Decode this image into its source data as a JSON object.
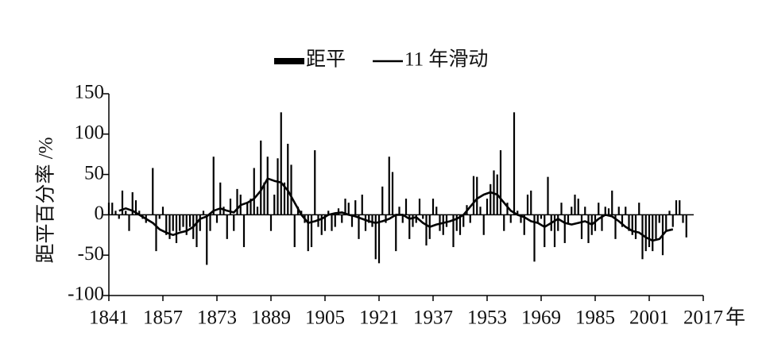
{
  "chart_data": {
    "type": "bar-line",
    "legend_position": "top",
    "ylabel": "距平百分率 /%",
    "x_unit": "年",
    "xlim": [
      1841,
      2017
    ],
    "xticks": [
      1841,
      1857,
      1873,
      1889,
      1905,
      1921,
      1937,
      1953,
      1969,
      1985,
      2001,
      2017
    ],
    "ylim": [
      -100,
      150
    ],
    "yticks": [
      -100,
      -50,
      0,
      50,
      100,
      150
    ],
    "series": [
      {
        "name": "距平",
        "type": "bar",
        "color": "#000000",
        "x": [
          1841,
          1842,
          1843,
          1844,
          1845,
          1846,
          1847,
          1848,
          1849,
          1850,
          1851,
          1852,
          1853,
          1854,
          1855,
          1856,
          1857,
          1858,
          1859,
          1860,
          1861,
          1862,
          1863,
          1864,
          1865,
          1866,
          1867,
          1868,
          1869,
          1870,
          1871,
          1872,
          1873,
          1874,
          1875,
          1876,
          1877,
          1878,
          1879,
          1880,
          1881,
          1882,
          1883,
          1884,
          1885,
          1886,
          1887,
          1888,
          1889,
          1890,
          1891,
          1892,
          1893,
          1894,
          1895,
          1896,
          1897,
          1898,
          1899,
          1900,
          1901,
          1902,
          1903,
          1904,
          1905,
          1906,
          1907,
          1908,
          1909,
          1910,
          1911,
          1912,
          1913,
          1914,
          1915,
          1916,
          1917,
          1918,
          1919,
          1920,
          1921,
          1922,
          1923,
          1924,
          1925,
          1926,
          1927,
          1928,
          1929,
          1930,
          1931,
          1932,
          1933,
          1934,
          1935,
          1936,
          1937,
          1938,
          1939,
          1940,
          1941,
          1942,
          1943,
          1944,
          1945,
          1946,
          1947,
          1948,
          1949,
          1950,
          1951,
          1952,
          1953,
          1954,
          1955,
          1956,
          1957,
          1958,
          1959,
          1960,
          1961,
          1962,
          1963,
          1964,
          1965,
          1966,
          1967,
          1968,
          1969,
          1970,
          1971,
          1972,
          1973,
          1974,
          1975,
          1976,
          1977,
          1978,
          1979,
          1980,
          1981,
          1982,
          1983,
          1984,
          1985,
          1986,
          1987,
          1988,
          1989,
          1990,
          1991,
          1992,
          1993,
          1994,
          1995,
          1996,
          1997,
          1998,
          1999,
          2000,
          2001,
          2002,
          2003,
          2004,
          2005,
          2006,
          2007,
          2008,
          2009,
          2010,
          2011,
          2012
        ],
        "values": [
          15,
          15,
          5,
          -5,
          30,
          5,
          -20,
          28,
          18,
          5,
          -5,
          -10,
          0,
          58,
          -45,
          -5,
          10,
          -25,
          -30,
          -20,
          -35,
          -20,
          -15,
          -25,
          -15,
          -30,
          -40,
          -20,
          5,
          -62,
          -20,
          72,
          -10,
          40,
          10,
          -30,
          20,
          -20,
          32,
          25,
          -40,
          15,
          20,
          58,
          10,
          92,
          40,
          72,
          -20,
          25,
          70,
          127,
          40,
          88,
          62,
          -40,
          10,
          5,
          -10,
          -45,
          -40,
          80,
          -15,
          -25,
          -20,
          5,
          -20,
          -15,
          8,
          -10,
          20,
          15,
          -15,
          18,
          -30,
          25,
          -20,
          -10,
          -15,
          -55,
          -60,
          35,
          -10,
          72,
          53,
          -45,
          10,
          -10,
          20,
          -30,
          -15,
          -10,
          20,
          -5,
          -38,
          -30,
          20,
          10,
          -20,
          -25,
          -15,
          0,
          -40,
          -20,
          -25,
          -15,
          12,
          -10,
          48,
          47,
          10,
          -25,
          20,
          38,
          55,
          50,
          80,
          -20,
          15,
          -10,
          127,
          5,
          -10,
          -25,
          25,
          30,
          -58,
          -10,
          -5,
          -40,
          47,
          -20,
          -40,
          -20,
          15,
          -35,
          -10,
          10,
          25,
          20,
          -30,
          10,
          -35,
          -25,
          -20,
          15,
          -20,
          10,
          8,
          30,
          -30,
          10,
          -15,
          10,
          -20,
          -25,
          -30,
          15,
          -55,
          -45,
          -40,
          -45,
          -30,
          -10,
          -50,
          -20,
          5,
          -15,
          18,
          18,
          -10,
          -28
        ]
      },
      {
        "name": "11 年滑动",
        "type": "line",
        "color": "#000000",
        "x": [
          1844,
          1846,
          1848,
          1850,
          1852,
          1854,
          1856,
          1858,
          1860,
          1862,
          1864,
          1866,
          1868,
          1870,
          1872,
          1874,
          1876,
          1878,
          1880,
          1882,
          1884,
          1886,
          1888,
          1890,
          1892,
          1894,
          1896,
          1898,
          1900,
          1902,
          1904,
          1906,
          1908,
          1910,
          1912,
          1914,
          1916,
          1918,
          1920,
          1922,
          1924,
          1926,
          1928,
          1930,
          1932,
          1934,
          1936,
          1938,
          1940,
          1942,
          1944,
          1946,
          1948,
          1950,
          1952,
          1954,
          1956,
          1958,
          1960,
          1962,
          1964,
          1966,
          1968,
          1970,
          1972,
          1974,
          1976,
          1978,
          1980,
          1982,
          1984,
          1986,
          1988,
          1990,
          1992,
          1994,
          1996,
          1998,
          2000,
          2002,
          2004,
          2006,
          2008
        ],
        "values": [
          5,
          8,
          5,
          0,
          -5,
          -10,
          -18,
          -22,
          -25,
          -22,
          -20,
          -15,
          -5,
          -2,
          5,
          8,
          5,
          3,
          12,
          15,
          20,
          30,
          45,
          42,
          40,
          30,
          15,
          0,
          -10,
          -8,
          -5,
          0,
          2,
          3,
          0,
          -2,
          -5,
          -8,
          -10,
          -8,
          -5,
          0,
          0,
          -5,
          -3,
          -10,
          -15,
          -12,
          -10,
          -8,
          -5,
          0,
          10,
          20,
          25,
          28,
          25,
          15,
          5,
          0,
          -3,
          -8,
          -10,
          -15,
          -10,
          -5,
          -10,
          -12,
          -10,
          -8,
          -12,
          -5,
          0,
          -2,
          -8,
          -15,
          -20,
          -22,
          -28,
          -32,
          -30,
          -20,
          -18
        ]
      }
    ]
  }
}
